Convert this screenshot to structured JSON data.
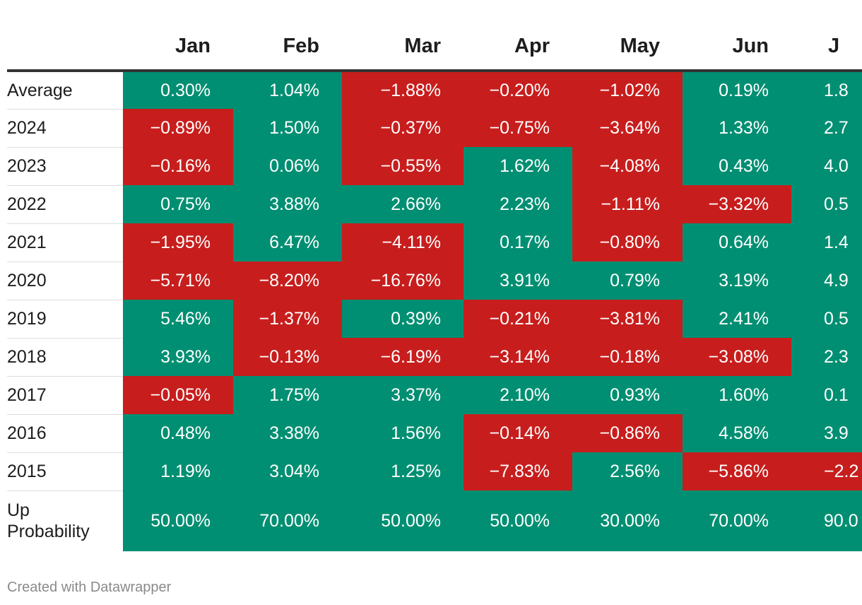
{
  "chart_data": {
    "type": "table",
    "title": "",
    "columns": [
      "Jan",
      "Feb",
      "Mar",
      "Apr",
      "May",
      "Jun",
      "J"
    ],
    "rows": [
      {
        "label": "Average",
        "values": [
          "0.30%",
          "1.04%",
          "−1.88%",
          "−0.20%",
          "−1.02%",
          "0.19%",
          "1.8"
        ]
      },
      {
        "label": "2024",
        "values": [
          "−0.89%",
          "1.50%",
          "−0.37%",
          "−0.75%",
          "−3.64%",
          "1.33%",
          "2.7"
        ]
      },
      {
        "label": "2023",
        "values": [
          "−0.16%",
          "0.06%",
          "−0.55%",
          "1.62%",
          "−4.08%",
          "0.43%",
          "4.0"
        ]
      },
      {
        "label": "2022",
        "values": [
          "0.75%",
          "3.88%",
          "2.66%",
          "2.23%",
          "−1.11%",
          "−3.32%",
          "0.5"
        ]
      },
      {
        "label": "2021",
        "values": [
          "−1.95%",
          "6.47%",
          "−4.11%",
          "0.17%",
          "−0.80%",
          "0.64%",
          "1.4"
        ]
      },
      {
        "label": "2020",
        "values": [
          "−5.71%",
          "−8.20%",
          "−16.76%",
          "3.91%",
          "0.79%",
          "3.19%",
          "4.9"
        ]
      },
      {
        "label": "2019",
        "values": [
          "5.46%",
          "−1.37%",
          "0.39%",
          "−0.21%",
          "−3.81%",
          "2.41%",
          "0.5"
        ]
      },
      {
        "label": "2018",
        "values": [
          "3.93%",
          "−0.13%",
          "−6.19%",
          "−3.14%",
          "−0.18%",
          "−3.08%",
          "2.3"
        ]
      },
      {
        "label": "2017",
        "values": [
          "−0.05%",
          "1.75%",
          "3.37%",
          "2.10%",
          "0.93%",
          "1.60%",
          "0.1"
        ]
      },
      {
        "label": "2016",
        "values": [
          "0.48%",
          "3.38%",
          "1.56%",
          "−0.14%",
          "−0.86%",
          "4.58%",
          "3.9"
        ]
      },
      {
        "label": "2015",
        "values": [
          "1.19%",
          "3.04%",
          "1.25%",
          "−7.83%",
          "2.56%",
          "−5.86%",
          "−2.2"
        ]
      },
      {
        "label": "Up\nProbability",
        "values": [
          "50.00%",
          "70.00%",
          "50.00%",
          "50.00%",
          "30.00%",
          "70.00%",
          "90.0"
        ]
      }
    ],
    "colors": {
      "positive": "#008f72",
      "negative": "#c71e1d"
    }
  },
  "footer": {
    "credit": "Created with Datawrapper"
  }
}
